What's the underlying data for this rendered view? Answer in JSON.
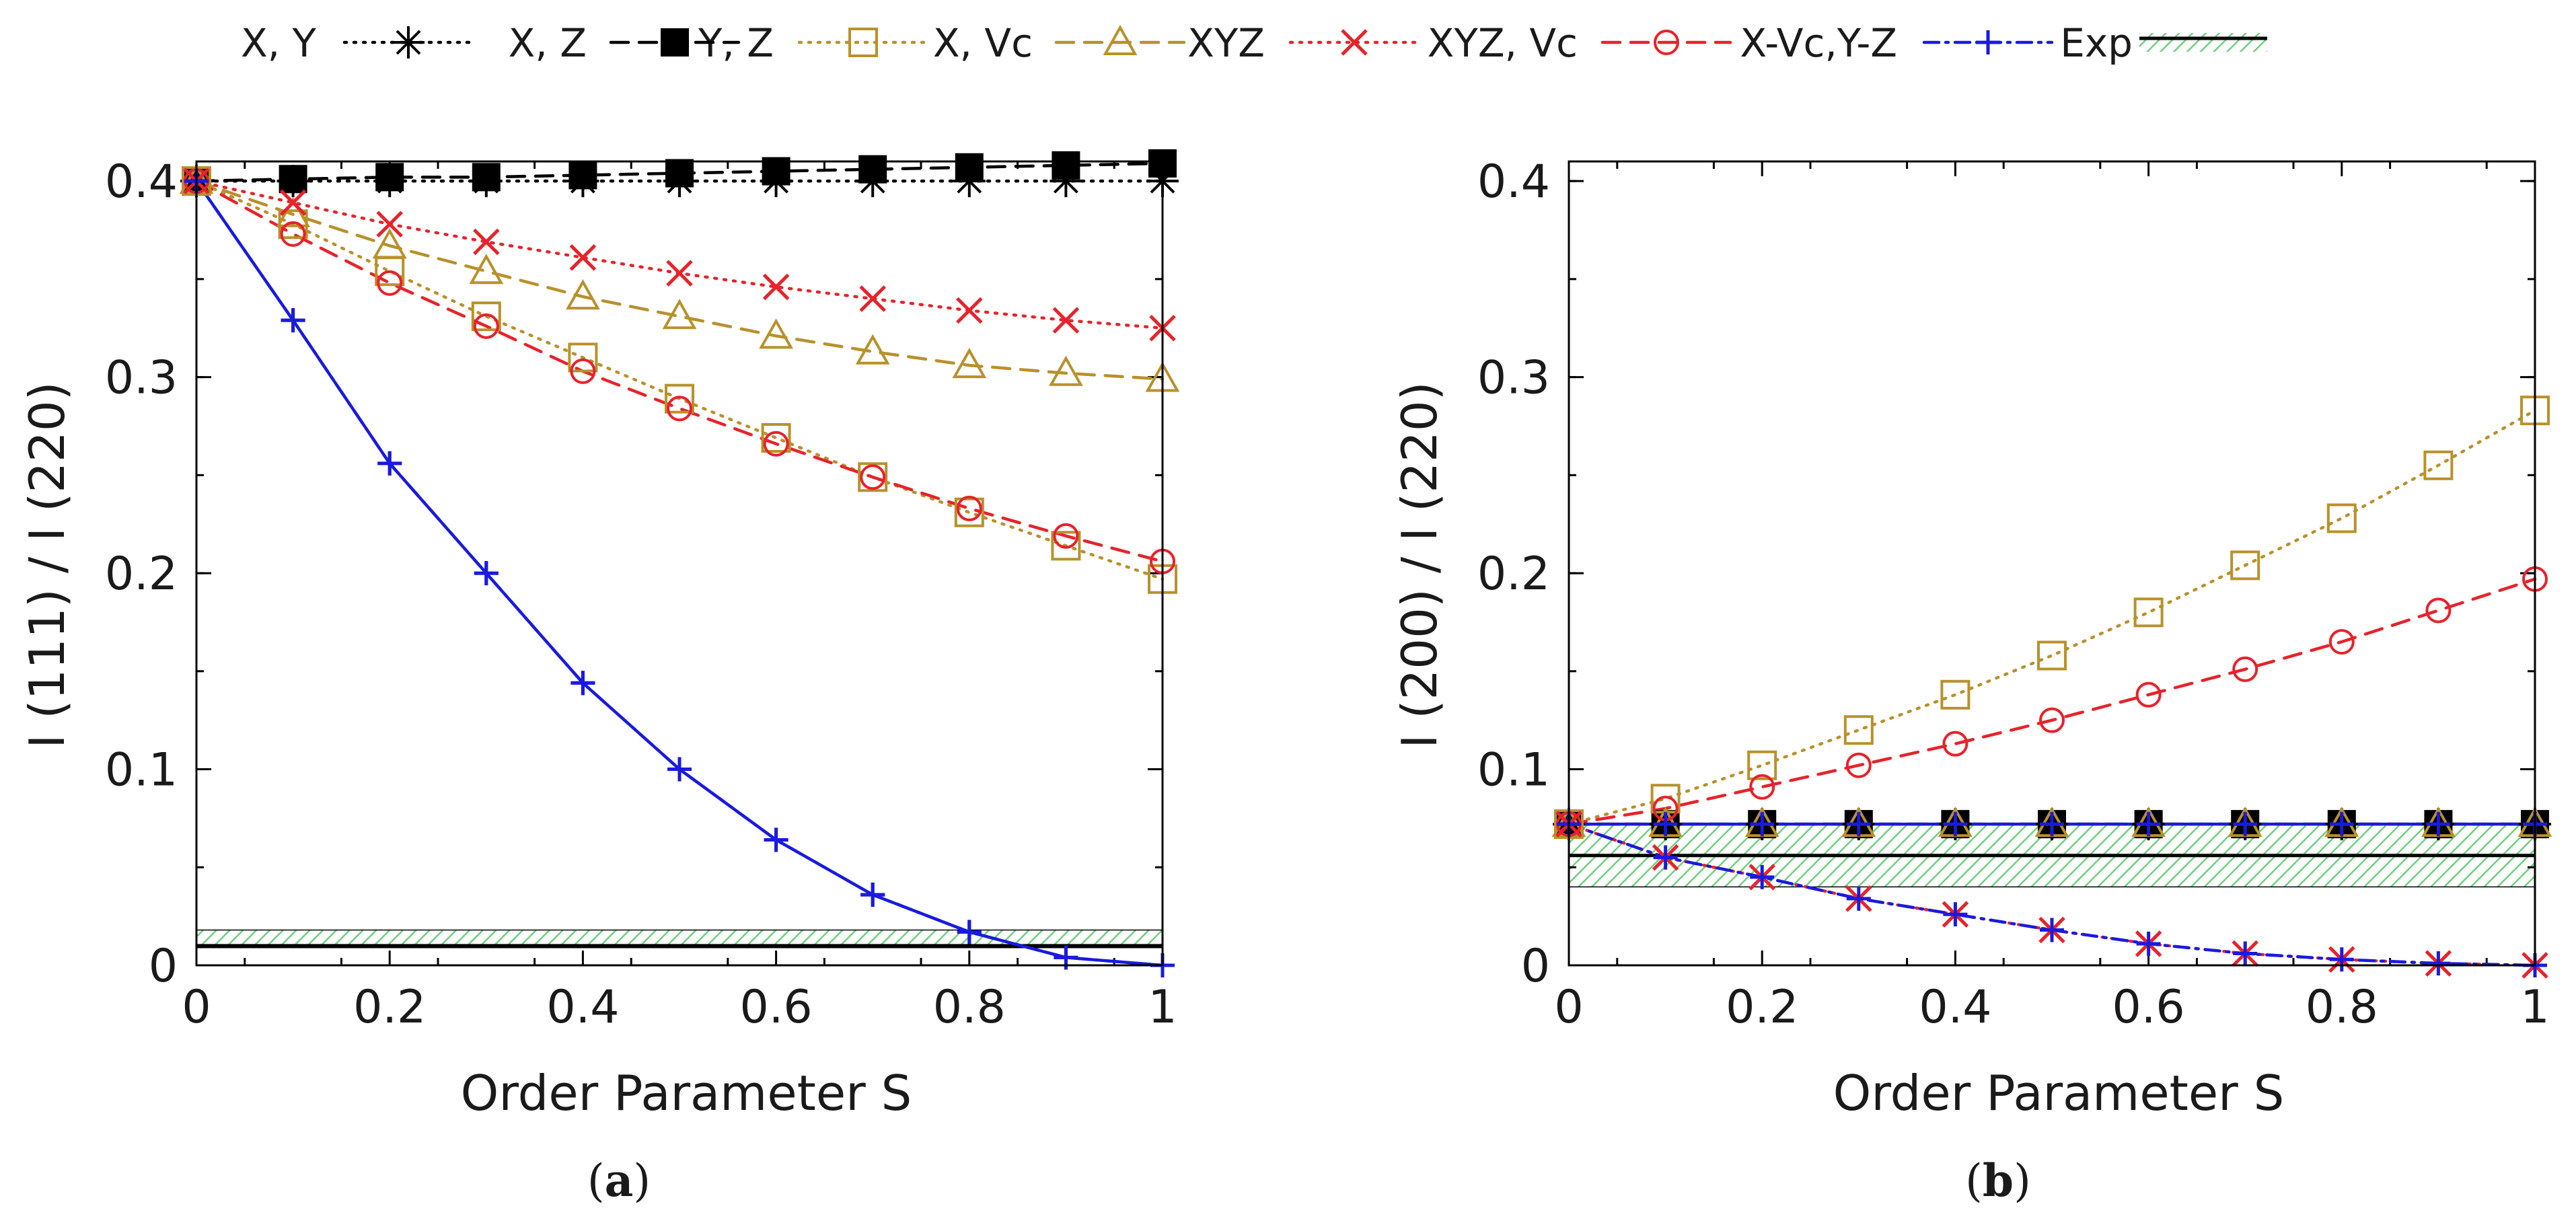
{
  "chart_data": [
    {
      "type": "line",
      "panel": "(a)",
      "panel_letter": "a",
      "xlabel": "Order Parameter S",
      "ylabel": "I (111) / I (220)",
      "xlim": [
        0,
        1
      ],
      "ylim": [
        0,
        0.41
      ],
      "xticks": [
        0,
        0.2,
        0.4,
        0.6,
        0.8,
        1
      ],
      "xtick_labels": [
        "0",
        "0.2",
        "0.4",
        "0.6",
        "0.8",
        "1"
      ],
      "yticks": [
        0,
        0.1,
        0.2,
        0.3,
        0.4
      ],
      "ytick_labels": [
        "0",
        "0.1",
        "0.2",
        "0.3",
        "0.4"
      ],
      "x": [
        0,
        0.1,
        0.2,
        0.3,
        0.4,
        0.5,
        0.6,
        0.7,
        0.8,
        0.9,
        1
      ],
      "series": [
        {
          "name": "X, Y",
          "values": [
            0.4,
            0.4,
            0.4,
            0.4,
            0.4,
            0.4,
            0.4,
            0.4,
            0.4,
            0.4,
            0.4
          ]
        },
        {
          "name": "X, Z",
          "values": [
            0.4,
            0.401,
            0.402,
            0.402,
            0.403,
            0.404,
            0.405,
            0.406,
            0.407,
            0.408,
            0.409
          ]
        },
        {
          "name": "Y, Z",
          "values": [
            0.4,
            0.378,
            0.354,
            0.331,
            0.31,
            0.289,
            0.269,
            0.249,
            0.231,
            0.214,
            0.197
          ]
        },
        {
          "name": "X, Vc",
          "values": [
            0.4,
            0.383,
            0.367,
            0.354,
            0.341,
            0.331,
            0.321,
            0.313,
            0.306,
            0.302,
            0.299
          ]
        },
        {
          "name": "XYZ",
          "values": [
            0.4,
            0.389,
            0.378,
            0.369,
            0.361,
            0.353,
            0.346,
            0.34,
            0.334,
            0.329,
            0.325
          ]
        },
        {
          "name": "XYZ, Vc",
          "values": [
            0.4,
            0.373,
            0.348,
            0.326,
            0.303,
            0.284,
            0.266,
            0.249,
            0.233,
            0.219,
            0.206
          ]
        },
        {
          "name": "X-Vc,Y-Z",
          "values": [
            0.4,
            0.329,
            0.256,
            0.2,
            0.144,
            0.1,
            0.064,
            0.036,
            0.017,
            0.004,
            0.0
          ]
        },
        {
          "name": "",
          "values": [
            0.4,
            0.329,
            0.256,
            0.2,
            0.144,
            0.1,
            0.064,
            0.036,
            0.017,
            0.004,
            0.0
          ]
        }
      ],
      "exp": {
        "name": "Exp",
        "value": 0.01,
        "band": [
          0.009,
          0.018
        ]
      }
    },
    {
      "type": "line",
      "panel": "(b)",
      "panel_letter": "b",
      "xlabel": "Order Parameter S",
      "ylabel": "I (200) / I (220)",
      "xlim": [
        0,
        1
      ],
      "ylim": [
        0,
        0.41
      ],
      "xticks": [
        0,
        0.2,
        0.4,
        0.6,
        0.8,
        1
      ],
      "xtick_labels": [
        "0",
        "0.2",
        "0.4",
        "0.6",
        "0.8",
        "1"
      ],
      "yticks": [
        0,
        0.1,
        0.2,
        0.3,
        0.4
      ],
      "ytick_labels": [
        "0",
        "0.1",
        "0.2",
        "0.3",
        "0.4"
      ],
      "x": [
        0,
        0.1,
        0.2,
        0.3,
        0.4,
        0.5,
        0.6,
        0.7,
        0.8,
        0.9,
        1
      ],
      "series": [
        {
          "name": "X, Y",
          "values": [
            0.072,
            0.072,
            0.072,
            0.072,
            0.072,
            0.072,
            0.072,
            0.072,
            0.072,
            0.072,
            0.072
          ]
        },
        {
          "name": "X, Z",
          "values": [
            0.072,
            0.072,
            0.072,
            0.072,
            0.072,
            0.072,
            0.072,
            0.072,
            0.072,
            0.072,
            0.072
          ]
        },
        {
          "name": "Y, Z",
          "values": [
            0.072,
            0.085,
            0.102,
            0.12,
            0.138,
            0.158,
            0.18,
            0.204,
            0.228,
            0.255,
            0.283
          ]
        },
        {
          "name": "X, Vc",
          "values": [
            0.072,
            0.072,
            0.072,
            0.072,
            0.072,
            0.072,
            0.072,
            0.072,
            0.072,
            0.072,
            0.072
          ]
        },
        {
          "name": "XYZ",
          "values": [
            0.072,
            0.055,
            0.045,
            0.034,
            0.026,
            0.018,
            0.011,
            0.006,
            0.003,
            0.001,
            0.0
          ]
        },
        {
          "name": "XYZ, Vc",
          "values": [
            0.072,
            0.08,
            0.091,
            0.102,
            0.113,
            0.125,
            0.138,
            0.151,
            0.165,
            0.181,
            0.197
          ]
        },
        {
          "name": "X-Vc,Y-Z",
          "values": [
            0.072,
            0.055,
            0.045,
            0.034,
            0.026,
            0.018,
            0.011,
            0.006,
            0.003,
            0.001,
            0.0
          ]
        },
        {
          "name": "",
          "values": [
            0.072,
            0.072,
            0.072,
            0.072,
            0.072,
            0.072,
            0.072,
            0.072,
            0.072,
            0.072,
            0.072
          ]
        }
      ],
      "exp": {
        "name": "Exp",
        "value": 0.056,
        "band": [
          0.04,
          0.072
        ]
      }
    }
  ],
  "legend": {
    "position": "top",
    "entries": [
      {
        "label": "X, Y",
        "color": "#000000",
        "marker": "asterisk",
        "dash": "dotted"
      },
      {
        "label": "X, Z",
        "color": "#000000",
        "marker": "filled-square",
        "dash": "dashed"
      },
      {
        "label": "Y, Z",
        "color": "#b8912b",
        "marker": "open-square",
        "dash": "dotted"
      },
      {
        "label": "X, Vc",
        "color": "#b8912b",
        "marker": "open-triangle",
        "dash": "dashed"
      },
      {
        "label": "XYZ",
        "color": "#e8222a",
        "marker": "cross",
        "dash": "dotted"
      },
      {
        "label": "XYZ, Vc",
        "color": "#e8222a",
        "marker": "open-circle",
        "dash": "dashed"
      },
      {
        "label": "X-Vc,Y-Z",
        "color": "#1a1adf",
        "marker": "plus",
        "dash": "dash-dot"
      },
      {
        "label": "Exp",
        "color": "#000000",
        "marker": "band",
        "dash": "solid"
      }
    ]
  },
  "colors": {
    "black": "#000000",
    "gold": "#b8912b",
    "red": "#e8222a",
    "blue": "#1a1adf",
    "band": "#6fd07f"
  }
}
